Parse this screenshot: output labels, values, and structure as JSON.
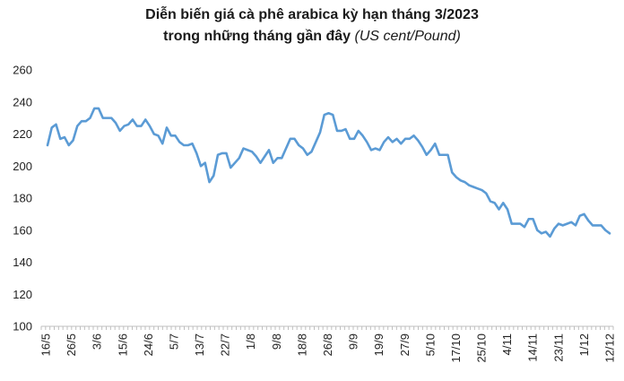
{
  "chart_data": {
    "type": "line",
    "title": "Diễn biến giá cà phê arabica kỳ hạn tháng 3/2023",
    "subtitle_main": "trong những tháng gần đây",
    "subtitle_unit": "(US cent/Pound)",
    "ylim": [
      100,
      260
    ],
    "yticks": [
      "100",
      "120",
      "140",
      "160",
      "180",
      "200",
      "220",
      "240",
      "260"
    ],
    "xtick_labels": [
      "16/5",
      "26/5",
      "3/6",
      "15/6",
      "24/6",
      "5/7",
      "13/7",
      "22/7",
      "1/8",
      "9/8",
      "18/8",
      "26/8",
      "9/9",
      "19/9",
      "27/9",
      "5/10",
      "17/10",
      "25/10",
      "4/11",
      "14/11",
      "23/11",
      "1/12",
      "12/12"
    ],
    "line_color": "#5b9bd5",
    "grid": false,
    "series": [
      {
        "values": [
          213,
          224,
          226,
          217,
          218,
          213,
          216,
          225,
          228,
          228,
          230,
          236,
          236,
          230,
          230,
          230,
          227,
          222,
          225,
          226,
          229,
          225,
          225,
          229,
          225,
          220,
          219,
          214,
          224,
          219,
          219,
          215,
          213,
          213,
          214,
          208,
          200,
          202,
          190,
          194,
          207,
          208,
          208,
          199,
          202,
          205,
          211,
          210,
          209,
          206,
          202,
          206,
          210,
          202,
          205,
          205,
          211,
          217,
          217,
          213,
          211,
          207,
          209,
          215,
          221,
          232,
          233,
          232,
          222,
          222,
          223,
          217,
          217,
          222,
          219,
          215,
          210,
          211,
          210,
          215,
          218,
          215,
          217,
          214,
          217,
          217,
          219,
          216,
          212,
          207,
          210,
          214,
          207,
          207,
          207,
          196,
          193,
          191,
          190,
          188,
          187,
          186,
          185,
          183,
          178,
          177,
          173,
          177,
          173,
          164,
          164,
          164,
          162,
          167,
          167,
          160,
          158,
          159,
          156,
          161,
          164,
          163,
          164,
          165,
          163,
          169,
          170,
          166,
          163,
          163,
          163,
          160,
          158
        ]
      }
    ]
  }
}
